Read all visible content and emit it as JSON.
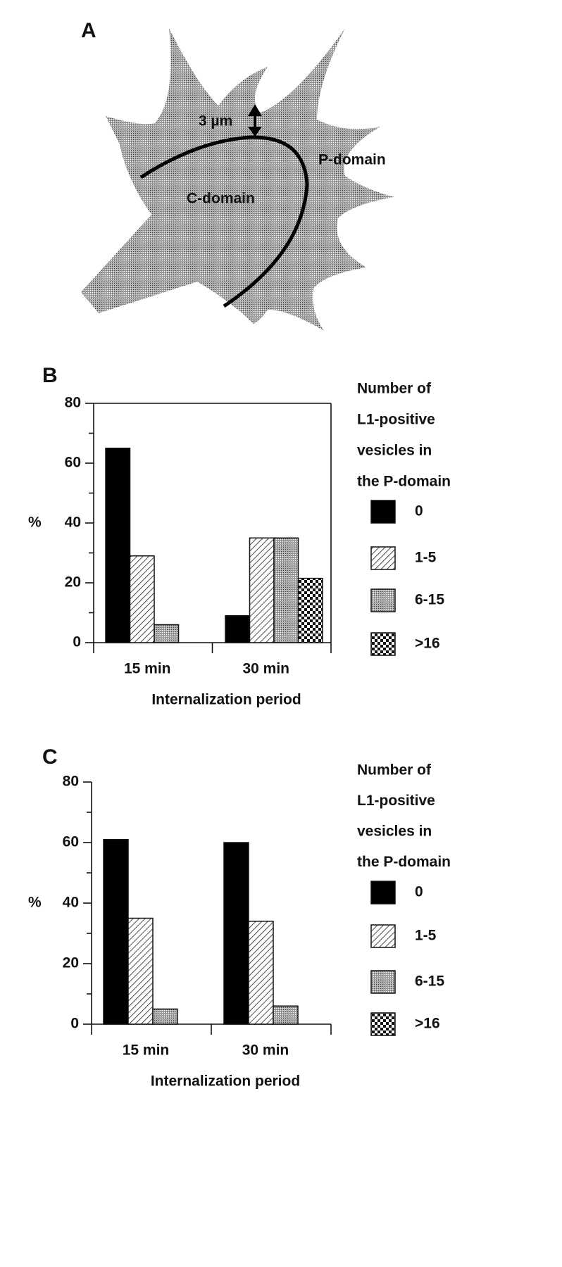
{
  "panel_a": {
    "label": "A",
    "scale_label": "3 µm",
    "p_domain": "P-domain",
    "c_domain": "C-domain"
  },
  "chart_data": [
    {
      "type": "bar",
      "panel_label": "B",
      "categories": [
        "15 min",
        "30 min"
      ],
      "series": [
        {
          "name": "0",
          "color": "#000000",
          "pattern": "solid",
          "values": [
            65,
            9
          ]
        },
        {
          "name": "1-5",
          "color": "#ffffff",
          "pattern": "hatch",
          "values": [
            29,
            35
          ]
        },
        {
          "name": "6-15",
          "color": "#999999",
          "pattern": "stipple",
          "values": [
            6,
            35
          ]
        },
        {
          "name": ">16",
          "color": "#ffffff",
          "pattern": "checker",
          "values": [
            0,
            21.5
          ]
        }
      ],
      "ylim": [
        0,
        80
      ],
      "yticks": [
        0,
        20,
        40,
        60,
        80
      ],
      "minor_yticks": [
        10,
        30,
        50,
        70
      ],
      "ylabel": "%",
      "xlabel": "Internalization period",
      "legend_title": [
        "Number of",
        "L1-positive",
        "vesicles in",
        "the P-domain"
      ],
      "legend": "right",
      "frame": true
    },
    {
      "type": "bar",
      "panel_label": "C",
      "categories": [
        "15 min",
        "30 min"
      ],
      "series": [
        {
          "name": "0",
          "color": "#000000",
          "pattern": "solid",
          "values": [
            61,
            60
          ]
        },
        {
          "name": "1-5",
          "color": "#ffffff",
          "pattern": "hatch",
          "values": [
            35,
            34
          ]
        },
        {
          "name": "6-15",
          "color": "#999999",
          "pattern": "stipple",
          "values": [
            5,
            6
          ]
        },
        {
          "name": ">16",
          "color": "#ffffff",
          "pattern": "checker",
          "values": [
            0,
            0
          ]
        }
      ],
      "ylim": [
        0,
        80
      ],
      "yticks": [
        0,
        20,
        40,
        60,
        80
      ],
      "minor_yticks": [
        10,
        30,
        50,
        70
      ],
      "ylabel": "%",
      "xlabel": "Internalization period",
      "legend_title": [
        "Number of",
        "L1-positive",
        "vesicles in",
        "the P-domain"
      ],
      "legend": "right",
      "frame": false
    }
  ]
}
